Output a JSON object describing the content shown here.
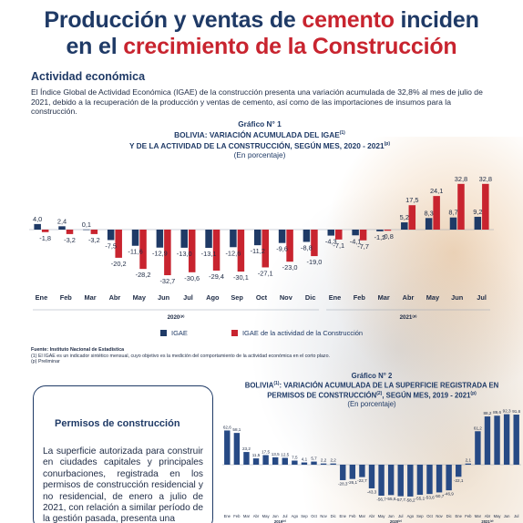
{
  "title": {
    "line1_pre": "Producción y ventas de ",
    "line1_highlight": "cemento",
    "line1_post": " inciden",
    "line2_pre": "en el ",
    "line2_highlight": "crecimiento de la Construcción"
  },
  "section": "Actividad económica",
  "intro": "El Índice Global de Actividad Económica (IGAE) de la construcción presenta una variación acumulada de 32,8% al mes de julio de 2021, debido a la recuperación de la producción y ventas de cemento, así como de las importaciones de insumos para la construcción.",
  "graph1": {
    "label": "Gráfico N° 1",
    "title_line1": "BOLIVIA: VARIACIÓN ACUMULADA DEL IGAE",
    "title_line1_sup": "(1)",
    "title_line2": "Y DE LA ACTIVIDAD DE LA CONSTRUCCIÓN, SEGÚN MES, 2020 - 2021",
    "title_line2_sup": "(p)",
    "unit": "(En porcentaje)"
  },
  "legend": {
    "igae": "IGAE",
    "construccion": "IGAE de la actividad de la  Construcción"
  },
  "notes": {
    "source": "Fuente: Instituto Nacional de Estadística",
    "note1": "(1) El IGAE es un indicador sintético mensual, cuyo objetivo es la medición del comportamiento de la actividad económica en el corto plazo.",
    "note2": "(p) Preliminar"
  },
  "box": {
    "title": "Permisos de construcción",
    "text": "La superficie autorizada para construir en ciudades capitales y principales conurbaciones, registrada en los permisos de construcción residencial y no residencial, de enero a julio de 2021, con relación a similar período de la gestión pasada, presenta una"
  },
  "graph2": {
    "label": "Gráfico N° 2",
    "title_line1": "BOLIVIA",
    "title_line1_sup": "(1)",
    "title_line1_rest": ": VARIACIÓN ACUMULADA DE LA SUPERFICIE REGISTRADA EN",
    "title_line2": "PERMISOS DE CONSTRUCCIÓN",
    "title_line2_sup": "(2)",
    "title_line2_rest": ", SEGÚN MES, 2019 - 2021",
    "title_line2_sup2": "(p)",
    "unit": "(En porcentaje)"
  },
  "colors": {
    "navy": "#1f3a66",
    "igae_bar": "#1f3a66",
    "construccion_bar": "#c8242f",
    "permisos_bar": "#274a85"
  },
  "chart_data": [
    {
      "type": "bar",
      "categories": [
        "Ene",
        "Feb",
        "Mar",
        "Abr",
        "May",
        "Jun",
        "Jul",
        "Ago",
        "Sep",
        "Oct",
        "Nov",
        "Dic",
        "Ene",
        "Feb",
        "Mar",
        "Abr",
        "May",
        "Jun",
        "Jul"
      ],
      "year_labels": [
        {
          "label": "2020",
          "sup": "(p)",
          "from": 0,
          "to": 11
        },
        {
          "label": "2021",
          "sup": "(p)",
          "from": 12,
          "to": 18
        }
      ],
      "series": [
        {
          "name": "IGAE",
          "values": [
            4.0,
            2.4,
            0.1,
            -7.5,
            -11.6,
            -12.9,
            -13.0,
            -13.1,
            -12.6,
            -11.2,
            -9.6,
            -8.8,
            -4.3,
            -4.1,
            -1.2,
            5.2,
            8.3,
            8.7,
            9.2
          ]
        },
        {
          "name": "IGAE de la actividad de la  Construcción",
          "values": [
            -1.8,
            -3.2,
            -3.2,
            -20.2,
            -28.2,
            -32.7,
            -30.6,
            -29.4,
            -30.1,
            -27.1,
            -23.0,
            -19.0,
            -7.1,
            -7.7,
            -0.8,
            17.5,
            24.1,
            32.8,
            32.8
          ]
        }
      ],
      "value_labels": {
        "IGAE": [
          "4,0",
          "2,4",
          "0,1",
          "-7,5",
          "-11,6",
          "-12,9",
          "-13,0",
          "-13,1",
          "-12,6",
          "-11,2",
          "-9,6",
          "-8,8",
          "-4,3",
          "-4,1",
          "-1,2",
          "5,2",
          "8,3",
          "8,7",
          "9,2"
        ],
        "IGAE de la actividad de la  Construcción": [
          "-1,8",
          "-3,2",
          "-3,2",
          "-20,2",
          "-28,2",
          "-32,7",
          "-30,6",
          "-29,4",
          "-30,1",
          "-27,1",
          "-23,0",
          "-19,0",
          "-7,1",
          "-7,7",
          "-0,8",
          "17,5",
          "24,1",
          "32,8",
          "32,8"
        ]
      },
      "ylim": [
        -36,
        36
      ],
      "grid": false,
      "legend": "bottom"
    },
    {
      "type": "bar",
      "categories": [
        "Ene",
        "Feb",
        "Mar",
        "Abr",
        "May",
        "Jun",
        "Jul",
        "Ago",
        "Sep",
        "Oct",
        "Nov",
        "Dic",
        "Ene",
        "Feb",
        "Mar",
        "Abr",
        "May",
        "Jun",
        "Jul",
        "Ago",
        "Sep",
        "Oct",
        "Nov",
        "Dic",
        "Ene",
        "Feb",
        "Mar",
        "Abr",
        "May",
        "Jun",
        "Jul"
      ],
      "year_labels": [
        {
          "label": "2019",
          "sup": "(p)",
          "from": 0,
          "to": 11
        },
        {
          "label": "2020",
          "sup": "(p)",
          "from": 12,
          "to": 23
        },
        {
          "label": "2021",
          "sup": "(p)",
          "from": 24,
          "to": 30
        }
      ],
      "series": [
        {
          "name": "",
          "values": [
            62.6,
            58.1,
            23.2,
            11.5,
            17.5,
            13.5,
            12.5,
            7.5,
            4.1,
            5.7,
            2.2,
            2.2,
            -28.3,
            -26.1,
            -22.7,
            -43.3,
            -56.7,
            -55.6,
            -57.7,
            -58.2,
            -55.1,
            -53.6,
            -50.7,
            -46.9,
            -22.1,
            2.1,
            61.2,
            88.2,
            89.6,
            92.3,
            91.6
          ]
        }
      ],
      "value_labels": [
        "62,6",
        "58,1",
        "23,2",
        "11,5",
        "17,5",
        "13,5",
        "12,5",
        "7,5",
        "4,1",
        "5,7",
        "2,2",
        "2,2",
        "-28,3",
        "-26,1",
        "-22,7",
        "-43,3",
        "-56,7",
        "-55,6",
        "-57,7",
        "-58,2",
        "-55,1",
        "-53,6",
        "-50,7",
        "-46,9",
        "-22,1",
        "2,1",
        "61,2",
        "88,2",
        "89,6",
        "92,3",
        "91,6"
      ],
      "ylim": [
        -95,
        95
      ],
      "grid": false,
      "legend": "none"
    }
  ]
}
